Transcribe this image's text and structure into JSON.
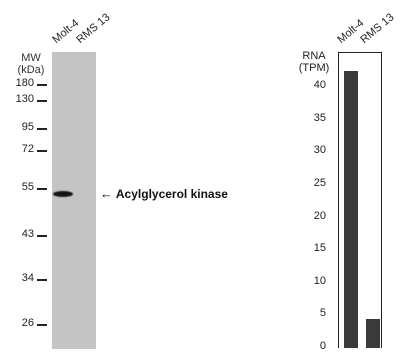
{
  "western_blot": {
    "mw_label": "MW",
    "mw_unit": "(kDa)",
    "lanes": [
      "Molt-4",
      "RMS 13"
    ],
    "markers": [
      "180",
      "130",
      "95",
      "72",
      "55",
      "43",
      "34",
      "26"
    ],
    "target_label": "Acylglycerol kinase",
    "arrow": "←"
  },
  "chart_data": {
    "type": "bar",
    "categories": [
      "Molt-4",
      "RMS 13"
    ],
    "values": [
      42.5,
      4.5
    ],
    "ylabel": "RNA (TPM)",
    "ylabel_lines": [
      "RNA",
      "(TPM)"
    ],
    "yticks": [
      "40",
      "35",
      "30",
      "25",
      "20",
      "15",
      "10",
      "5",
      "0"
    ],
    "ylim": [
      0,
      45
    ],
    "grid": false,
    "bar_color": "#3a3a3a"
  }
}
